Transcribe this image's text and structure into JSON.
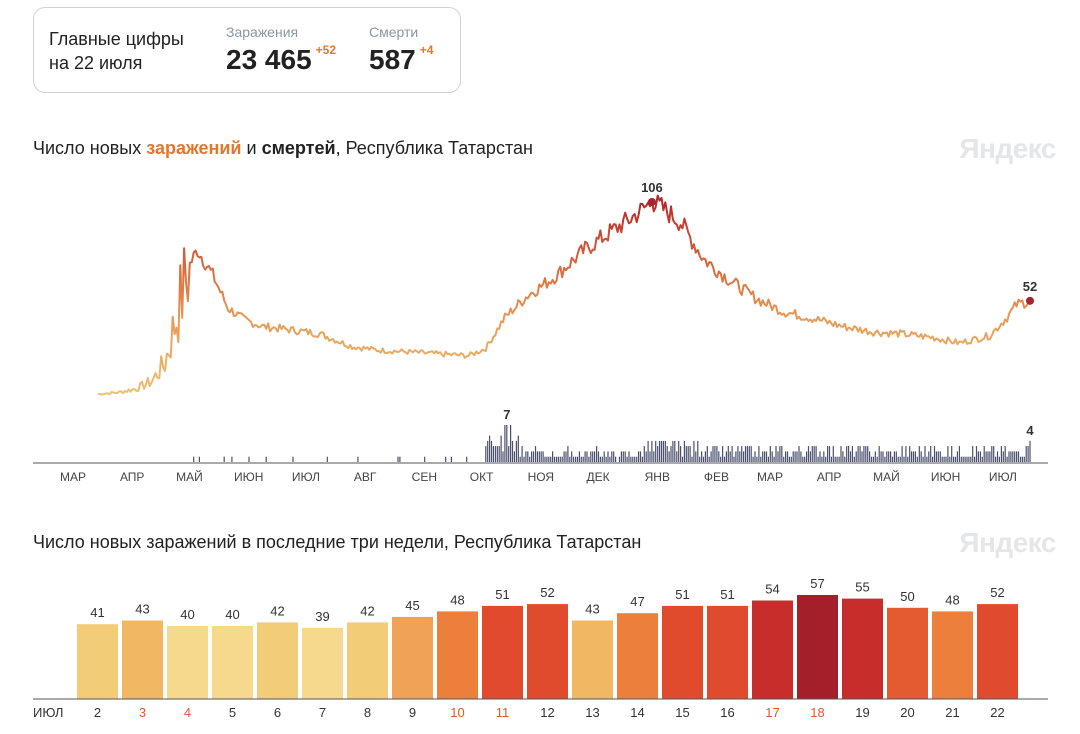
{
  "summary": {
    "title_line1": "Главные цифры",
    "title_line2": "на 22 июля",
    "infections_label": "Заражения",
    "infections_value": "23 465",
    "infections_delta": "+52",
    "deaths_label": "Смерти",
    "deaths_value": "587",
    "deaths_delta": "+4"
  },
  "brand": "Яндекс",
  "chart1": {
    "title_prefix": "Число новых ",
    "title_infections": "заражений",
    "title_and": " и ",
    "title_deaths": "смертей",
    "title_suffix": ", Республика Татарстан",
    "peak_label": "106",
    "last_label": "52",
    "deaths_peak_label": "7",
    "deaths_last_label": "4",
    "months": [
      "МАР",
      "АПР",
      "МАЙ",
      "ИЮН",
      "ИЮЛ",
      "АВГ",
      "СЕН",
      "ОКТ",
      "НОЯ",
      "ДЕК",
      "ЯНВ",
      "ФЕВ",
      "МАР",
      "АПР",
      "МАЙ",
      "ИЮН",
      "ИЮЛ"
    ]
  },
  "chart2": {
    "title": "Число новых заражений в последние три недели, Республика Татарстан",
    "month_label": "ИЮЛ"
  },
  "chart_data": [
    {
      "type": "line",
      "title": "Число новых заражений и смертей, Республика Татарстан",
      "x_start": "2020-03-01",
      "x_end": "2021-07-22",
      "x_tick_labels": [
        "МАР",
        "АПР",
        "МАЙ",
        "ИЮН",
        "ИЮЛ",
        "АВГ",
        "СЕН",
        "ОКТ",
        "НОЯ",
        "ДЕК",
        "ЯНВ",
        "ФЕВ",
        "МАР",
        "АПР",
        "МАЙ",
        "ИЮН",
        "ИЮЛ"
      ],
      "series": [
        {
          "name": "заражений",
          "x": [
            "2020-03-21",
            "2020-04-01",
            "2020-04-10",
            "2020-04-18",
            "2020-04-25",
            "2020-05-05",
            "2020-05-08",
            "2020-05-12",
            "2020-05-20",
            "2020-05-28",
            "2020-06-05",
            "2020-06-15",
            "2020-07-01",
            "2020-07-15",
            "2020-08-01",
            "2020-08-15",
            "2020-09-01",
            "2020-09-15",
            "2020-10-01",
            "2020-10-10",
            "2020-10-20",
            "2020-11-01",
            "2020-11-15",
            "2020-12-01",
            "2020-12-15",
            "2020-12-25",
            "2021-01-05",
            "2021-01-10",
            "2021-01-20",
            "2021-02-01",
            "2021-02-15",
            "2021-03-01",
            "2021-03-15",
            "2021-04-01",
            "2021-04-15",
            "2021-05-01",
            "2021-05-15",
            "2021-06-01",
            "2021-06-15",
            "2021-07-01",
            "2021-07-10",
            "2021-07-15",
            "2021-07-22"
          ],
          "values": [
            1,
            2,
            4,
            8,
            18,
            60,
            72,
            80,
            66,
            48,
            42,
            38,
            36,
            34,
            27,
            25,
            24,
            23,
            22,
            26,
            43,
            55,
            65,
            80,
            90,
            97,
            106,
            103,
            95,
            75,
            63,
            53,
            46,
            42,
            38,
            35,
            34,
            32,
            29,
            33,
            43,
            50,
            52
          ]
        }
      ]
    },
    {
      "type": "bar",
      "title": "смертей",
      "annotations": [
        {
          "label": "7",
          "x": "2020-10-21"
        },
        {
          "label": "4",
          "x": "2021-07-22"
        }
      ],
      "y_max": 7
    },
    {
      "type": "bar",
      "title": "Число новых заражений в последние три недели, Республика Татарстан",
      "x_prefix": "ИЮЛ",
      "categories": [
        "2",
        "3",
        "4",
        "5",
        "6",
        "7",
        "8",
        "9",
        "10",
        "11",
        "12",
        "13",
        "14",
        "15",
        "16",
        "17",
        "18",
        "19",
        "20",
        "21",
        "22"
      ],
      "values": [
        41,
        43,
        40,
        40,
        42,
        39,
        42,
        45,
        48,
        51,
        52,
        43,
        47,
        51,
        51,
        54,
        57,
        55,
        50,
        48,
        52
      ],
      "highlighted_categories": [
        "3",
        "4",
        "10",
        "11",
        "17",
        "18"
      ],
      "highlight_color": "#e4572c"
    }
  ]
}
